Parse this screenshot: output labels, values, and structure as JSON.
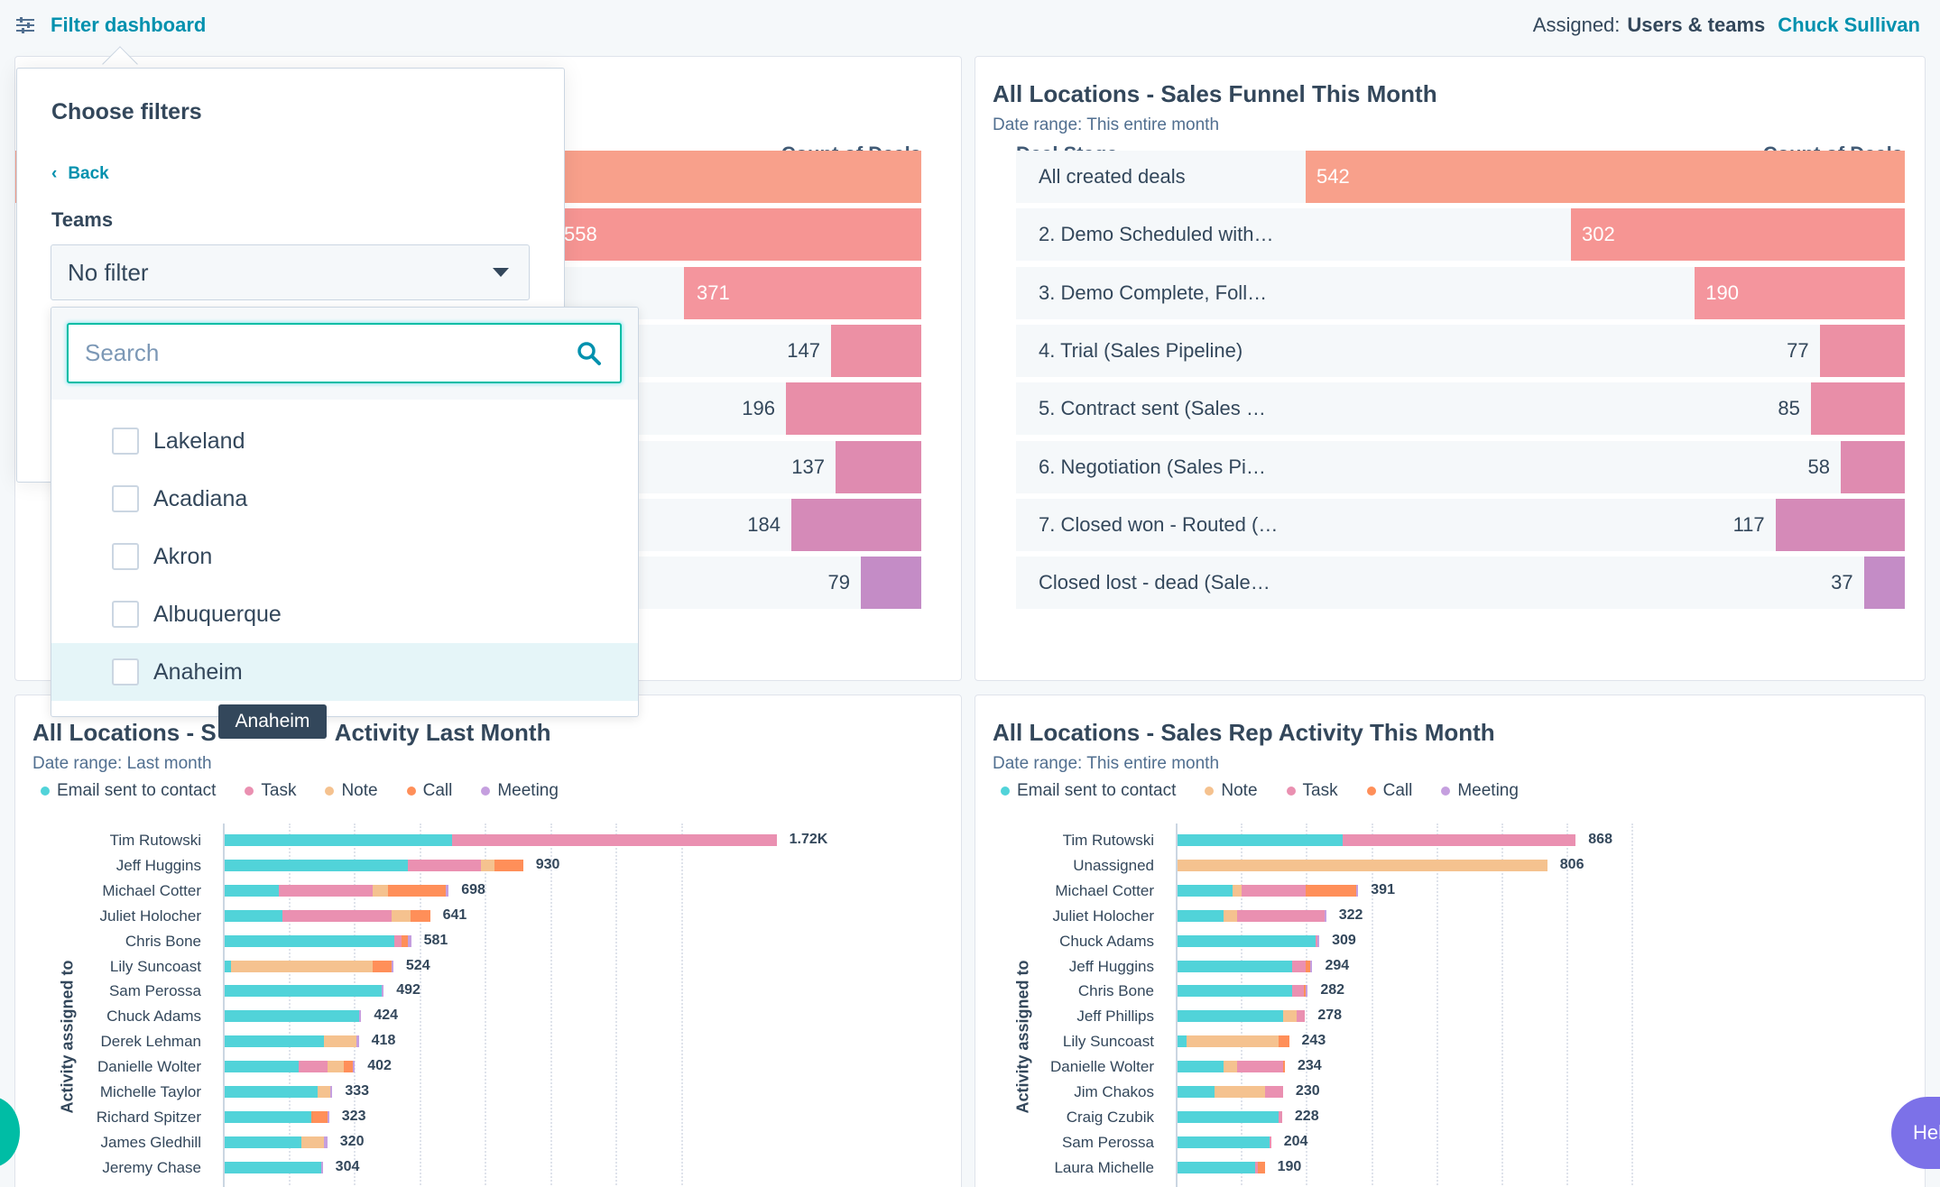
{
  "topbar": {
    "filter_label": "Filter dashboard",
    "assigned_label": "Assigned:",
    "assigned_type": "Users & teams",
    "assigned_user": "Chuck Sullivan"
  },
  "colors": {
    "accent": "#0091ae",
    "email": "#51d3d9",
    "task": "#ea90b1",
    "note": "#f5c28f",
    "call": "#ff8f59",
    "meeting": "#c59fdf"
  },
  "funnel_left": {
    "count_header": "Count of Deals",
    "rows": [
      {
        "value": null,
        "color": "#f8a08b"
      },
      {
        "value": "558",
        "color": "#f69593"
      },
      {
        "value": "371",
        "color": "#f4959d"
      },
      {
        "value": "147",
        "color": "#ec90a4"
      },
      {
        "value": "196",
        "color": "#e88ea8"
      },
      {
        "value": "137",
        "color": "#df8bb0"
      },
      {
        "value": "184",
        "color": "#d58ab8"
      },
      {
        "value": "79",
        "color": "#c48cc6"
      }
    ]
  },
  "funnel_right": {
    "title": "All Locations - Sales Funnel This Month",
    "date_range": "Date range: This entire month",
    "stage_header": "Deal Stage",
    "count_header": "Count of Deals",
    "rows": [
      {
        "label": "All created deals",
        "value": "542",
        "count": 542,
        "color": "#f8a08b"
      },
      {
        "label": "2. Demo Scheduled with…",
        "value": "302",
        "count": 302,
        "color": "#f69593"
      },
      {
        "label": "3. Demo Complete, Foll…",
        "value": "190",
        "count": 190,
        "color": "#f4959d"
      },
      {
        "label": "4. Trial (Sales Pipeline)",
        "value": "77",
        "count": 77,
        "color": "#ec90a4"
      },
      {
        "label": "5. Contract sent (Sales …",
        "value": "85",
        "count": 85,
        "color": "#e88ea8"
      },
      {
        "label": "6. Negotiation (Sales Pi…",
        "value": "58",
        "count": 58,
        "color": "#df8bb0"
      },
      {
        "label": "7. Closed won - Routed (…",
        "value": "117",
        "count": 117,
        "color": "#d58ab8"
      },
      {
        "label": "Closed lost - dead (Sale…",
        "value": "37",
        "count": 37,
        "color": "#c48cc6"
      }
    ]
  },
  "activity_left": {
    "title_start": "All Locations - S",
    "title_end": "Activity Last Month",
    "date_range": "Date range: Last month",
    "y_label": "Activity assigned to",
    "legend": [
      {
        "name": "Email sent to contact",
        "key": "email"
      },
      {
        "name": "Task",
        "key": "task"
      },
      {
        "name": "Note",
        "key": "note"
      },
      {
        "name": "Call",
        "key": "call"
      },
      {
        "name": "Meeting",
        "key": "meeting"
      }
    ]
  },
  "activity_right": {
    "title": "All Locations - Sales Rep Activity This Month",
    "date_range": "Date range: This entire month",
    "y_label": "Activity assigned to",
    "legend": [
      {
        "name": "Email sent to contact",
        "key": "email"
      },
      {
        "name": "Note",
        "key": "note"
      },
      {
        "name": "Task",
        "key": "task"
      },
      {
        "name": "Call",
        "key": "call"
      },
      {
        "name": "Meeting",
        "key": "meeting"
      }
    ]
  },
  "chart_data": [
    {
      "type": "bar",
      "title": "All Locations - Sales Rep Activity Last Month",
      "ylabel": "Activity assigned to",
      "xlim": [
        0,
        2000
      ],
      "categories": [
        "Tim Rutowski",
        "Jeff Huggins",
        "Michael Cotter",
        "Juliet Holocher",
        "Chris Bone",
        "Lily Suncoast",
        "Sam Perossa",
        "Chuck Adams",
        "Derek Lehman",
        "Danielle Wolter",
        "Michelle Taylor",
        "Richard Spitzer",
        "James Gledhill",
        "Jeremy Chase"
      ],
      "totals": [
        "1.72K",
        "930",
        "698",
        "641",
        "581",
        "524",
        "492",
        "424",
        "418",
        "402",
        "333",
        "323",
        "320",
        "304"
      ],
      "series": [
        {
          "name": "Email sent to contact",
          "key": "email",
          "values": [
            710,
            570,
            170,
            180,
            530,
            20,
            490,
            420,
            310,
            230,
            290,
            270,
            240,
            300
          ]
        },
        {
          "name": "Task",
          "key": "task",
          "values": [
            1010,
            230,
            290,
            340,
            20,
            0,
            0,
            0,
            0,
            90,
            0,
            0,
            0,
            0
          ]
        },
        {
          "name": "Note",
          "key": "note",
          "values": [
            0,
            40,
            50,
            60,
            0,
            440,
            0,
            0,
            100,
            50,
            40,
            0,
            70,
            0
          ]
        },
        {
          "name": "Call",
          "key": "call",
          "values": [
            0,
            90,
            180,
            60,
            20,
            60,
            0,
            0,
            0,
            30,
            0,
            50,
            0,
            0
          ]
        },
        {
          "name": "Meeting",
          "key": "meeting",
          "values": [
            0,
            0,
            8,
            0,
            11,
            4,
            2,
            4,
            8,
            2,
            3,
            3,
            10,
            4
          ]
        }
      ]
    },
    {
      "type": "bar",
      "title": "All Locations - Sales Rep Activity This Month",
      "ylabel": "Activity assigned to",
      "xlim": [
        0,
        1000
      ],
      "categories": [
        "Tim Rutowski",
        "Unassigned",
        "Michael Cotter",
        "Juliet Holocher",
        "Chuck Adams",
        "Jeff Huggins",
        "Chris Bone",
        "Jeff Phillips",
        "Lily Suncoast",
        "Danielle Wolter",
        "Jim Chakos",
        "Craig Czubik",
        "Sam Perossa",
        "Laura Michelle"
      ],
      "totals": [
        "868",
        "806",
        "391",
        "322",
        "309",
        "294",
        "282",
        "278",
        "243",
        "234",
        "230",
        "228",
        "204",
        "190"
      ],
      "series": [
        {
          "name": "Email sent to contact",
          "key": "email",
          "values": [
            360,
            0,
            120,
            100,
            300,
            250,
            250,
            230,
            20,
            100,
            80,
            220,
            200,
            170
          ]
        },
        {
          "name": "Note",
          "key": "note",
          "values": [
            0,
            806,
            20,
            30,
            0,
            0,
            0,
            30,
            200,
            30,
            110,
            0,
            0,
            0
          ]
        },
        {
          "name": "Task",
          "key": "task",
          "values": [
            508,
            0,
            140,
            190,
            5,
            30,
            25,
            18,
            0,
            100,
            40,
            8,
            4,
            5
          ]
        },
        {
          "name": "Call",
          "key": "call",
          "values": [
            0,
            0,
            110,
            0,
            0,
            10,
            5,
            0,
            23,
            4,
            0,
            0,
            0,
            15
          ]
        },
        {
          "name": "Meeting",
          "key": "meeting",
          "values": [
            0,
            0,
            1,
            2,
            4,
            4,
            2,
            0,
            0,
            0,
            0,
            0,
            0,
            0
          ]
        }
      ]
    }
  ],
  "filter_popover": {
    "title": "Choose filters",
    "back_label": "Back",
    "teams_label": "Teams",
    "select_value": "No filter",
    "search_placeholder": "Search",
    "options": [
      "Lakeland",
      "Acadiana",
      "Akron",
      "Albuquerque",
      "Anaheim"
    ],
    "tooltip": "Anaheim"
  },
  "help": {
    "label": "Hel"
  }
}
